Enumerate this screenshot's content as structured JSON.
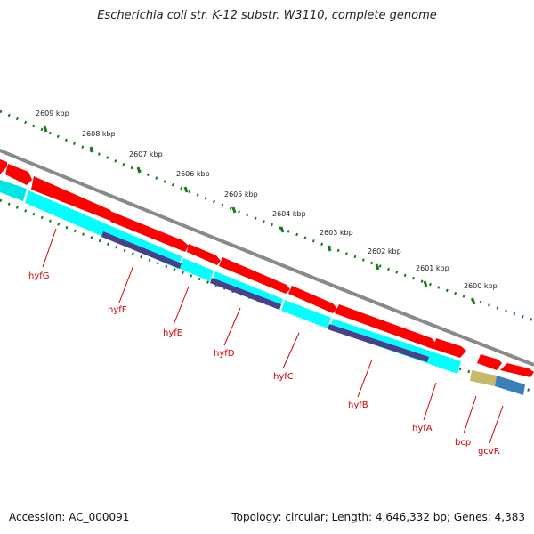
{
  "title": "Escherichia coli str. K-12 substr. W3110, complete genome",
  "accession": "Accession: AC_000091",
  "topology": "Topology: circular; Length: 4,646,332 bp; Genes: 4,383",
  "colors": {
    "backbone": "#8a8a8a",
    "forward_gene": "#ff0000",
    "reverse_gene": "#00ffff",
    "operon": "#4b3f8a",
    "ruler": "#1a7a1a",
    "label": "#d10000"
  },
  "ruler_ticks": [
    "2609 kbp",
    "2608 kbp",
    "2607 kbp",
    "2606 kbp",
    "2605 kbp",
    "2604 kbp",
    "2603 kbp",
    "2602 kbp",
    "2601 kbp",
    "2600 kbp"
  ],
  "genes": [
    "hyfG",
    "hyfF",
    "hyfE",
    "hyfD",
    "hyfC",
    "hyfB",
    "hyfA",
    "bcp",
    "gcvR"
  ]
}
